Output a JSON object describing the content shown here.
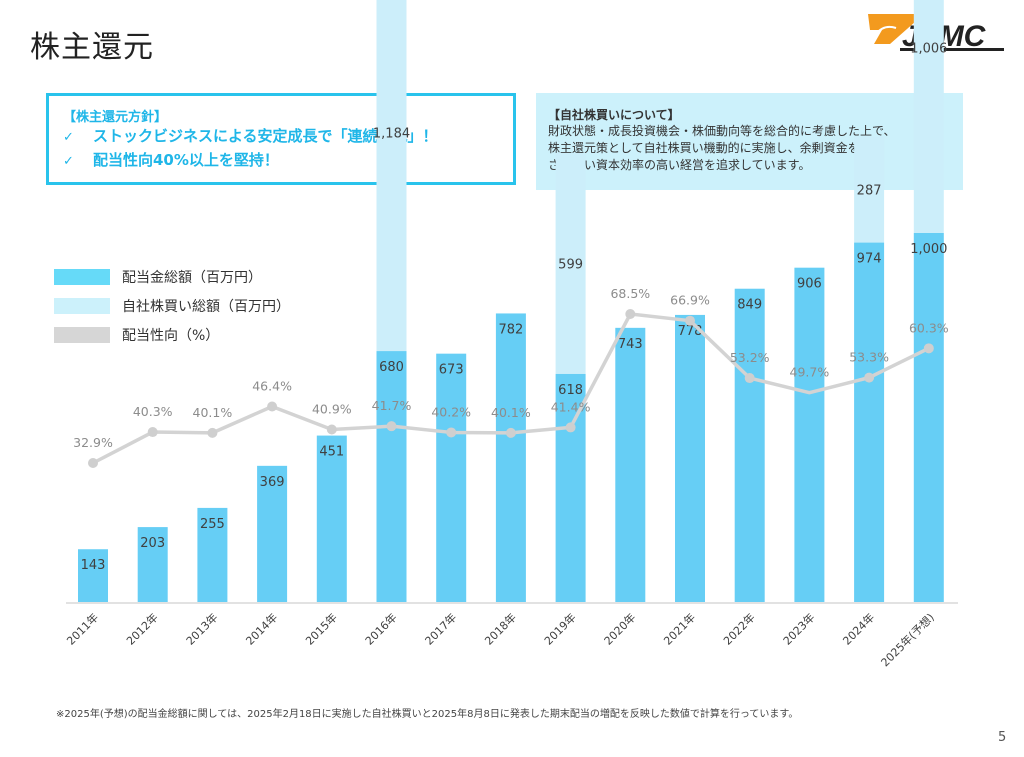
{
  "page": {
    "title": "株主還元",
    "page_number": "5",
    "logo_text": "JPMC"
  },
  "policy_box": {
    "heading": "【株主還元方針】",
    "check_icon": "✓",
    "items": [
      "ストックビジネスによる安定成長で「連続増配」！",
      "配当性向40%以上を堅持！"
    ]
  },
  "buyback_box": {
    "heading": "【自社株買いについて】",
    "lines": [
      "財政状態・成長投資機会・株価動向等を総合的に考慮した上で、",
      "株主還元策として自社株買い機動的に実施し、余剰資金を生じ",
      "させない資本効率の高い経営を追求しています。"
    ]
  },
  "colors": {
    "dividend": "#66CEF5",
    "buyback": "#CCEEFA",
    "payout": "#D3D3D3",
    "accent": "#29C3EC",
    "logo_orange": "#F39A1E"
  },
  "chart_data": {
    "type": "bar",
    "stacked": true,
    "title": "",
    "categories": [
      "2011年",
      "2012年",
      "2013年",
      "2014年",
      "2015年",
      "2016年",
      "2017年",
      "2018年",
      "2019年",
      "2020年",
      "2021年",
      "2022年",
      "2023年",
      "2024年",
      "2025年(予想)"
    ],
    "legend": {
      "position": "top-left",
      "entries": [
        "配当金総額（百万円）",
        "自社株買い総額（百万円）",
        "配当性向（%）"
      ]
    },
    "series": [
      {
        "name": "配当金総額（百万円）",
        "type": "bar",
        "values": [
          143,
          203,
          255,
          369,
          451,
          680,
          673,
          782,
          618,
          743,
          778,
          849,
          906,
          974,
          1000
        ],
        "labels": [
          "143",
          "203",
          "255",
          "369",
          "451",
          "680",
          "673",
          "782",
          "618",
          "743",
          "778",
          "849",
          "906",
          "974",
          "1,000"
        ]
      },
      {
        "name": "自社株買い総額（百万円）",
        "type": "bar",
        "values": [
          0,
          0,
          0,
          0,
          0,
          1184,
          0,
          0,
          599,
          0,
          0,
          0,
          0,
          287,
          1006
        ],
        "labels": [
          "",
          "",
          "",
          "",
          "",
          "1,184",
          "",
          "",
          "599",
          "",
          "",
          "",
          "",
          "287",
          "1,006"
        ]
      },
      {
        "name": "配当性向（%）",
        "type": "line",
        "values": [
          32.9,
          40.3,
          40.1,
          46.4,
          40.9,
          41.7,
          40.2,
          40.1,
          41.4,
          68.5,
          66.9,
          53.2,
          49.7,
          53.3,
          60.3
        ],
        "labels": [
          "32.9%",
          "40.3%",
          "40.1%",
          "46.4%",
          "40.9%",
          "41.7%",
          "40.2%",
          "40.1%",
          "41.4%",
          "68.5%",
          "66.9%",
          "53.2%",
          "49.7%",
          "53.3%",
          "60.3%"
        ],
        "hidden_markers": [
          12
        ]
      }
    ],
    "y_left_range": [
      0,
      2000
    ],
    "y_right_range": [
      0,
      100
    ],
    "grid": false,
    "axes_visible": false
  },
  "footnote": "※2025年(予想)の配当金総額に関しては、2025年2月18日に実施した自社株買いと2025年8月8日に発表した期末配当の増配を反映した数値で計算を行っています。"
}
